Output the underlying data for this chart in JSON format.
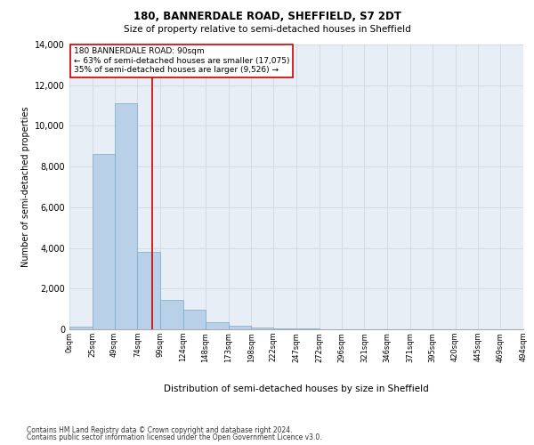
{
  "title1": "180, BANNERDALE ROAD, SHEFFIELD, S7 2DT",
  "title2": "Size of property relative to semi-detached houses in Sheffield",
  "xlabel": "Distribution of semi-detached houses by size in Sheffield",
  "ylabel": "Number of semi-detached properties",
  "footer1": "Contains HM Land Registry data © Crown copyright and database right 2024.",
  "footer2": "Contains public sector information licensed under the Open Government Licence v3.0.",
  "annotation_title": "180 BANNERDALE ROAD: 90sqm",
  "annotation_line1": "← 63% of semi-detached houses are smaller (17,075)",
  "annotation_line2": "35% of semi-detached houses are larger (9,526) →",
  "property_size": 90,
  "bin_edges": [
    0,
    25,
    49,
    74,
    99,
    124,
    148,
    173,
    198,
    222,
    247,
    272,
    296,
    321,
    346,
    371,
    395,
    420,
    445,
    469,
    494
  ],
  "bar_heights": [
    130,
    8600,
    11100,
    3800,
    1450,
    950,
    350,
    170,
    90,
    60,
    40,
    20,
    15,
    10,
    8,
    5,
    3,
    2,
    1,
    1
  ],
  "bar_color": "#b8d0e8",
  "bar_edge_color": "#7aaac8",
  "vline_color": "#cc0000",
  "vline_x": 90,
  "annotation_box_color": "#ffffff",
  "annotation_box_edge": "#cc0000",
  "grid_color": "#d0d8e4",
  "bg_color": "#e8eef5",
  "ylim": [
    0,
    14000
  ],
  "yticks": [
    0,
    2000,
    4000,
    6000,
    8000,
    10000,
    12000,
    14000
  ],
  "fig_width": 6.0,
  "fig_height": 5.0,
  "dpi": 100
}
